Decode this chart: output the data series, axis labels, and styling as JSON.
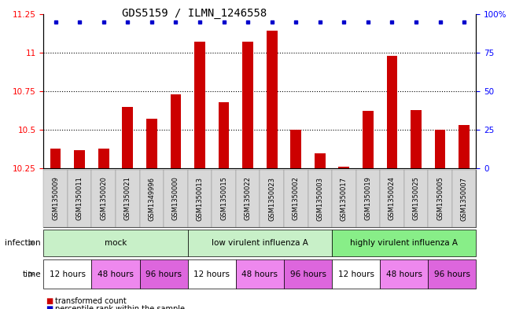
{
  "title": "GDS5159 / ILMN_1246558",
  "samples": [
    "GSM1350009",
    "GSM1350011",
    "GSM1350020",
    "GSM1350021",
    "GSM1349996",
    "GSM1350000",
    "GSM1350013",
    "GSM1350015",
    "GSM1350022",
    "GSM1350023",
    "GSM1350002",
    "GSM1350003",
    "GSM1350017",
    "GSM1350019",
    "GSM1350024",
    "GSM1350025",
    "GSM1350005",
    "GSM1350007"
  ],
  "bar_values": [
    10.38,
    10.37,
    10.38,
    10.65,
    10.57,
    10.73,
    11.07,
    10.68,
    11.07,
    11.14,
    10.5,
    10.35,
    10.26,
    10.62,
    10.98,
    10.63,
    10.5,
    10.53
  ],
  "ylim": [
    10.25,
    11.25
  ],
  "yticks": [
    10.25,
    10.5,
    10.75,
    11.0,
    11.25
  ],
  "ytick_labels": [
    "10.25",
    "10.5",
    "10.75",
    "11",
    "11.25"
  ],
  "right_yticks": [
    0,
    25,
    50,
    75,
    100
  ],
  "right_ytick_labels": [
    "0",
    "25",
    "50",
    "75",
    "100%"
  ],
  "bar_color": "#cc0000",
  "dot_color": "#0000cc",
  "bar_bottom": 10.25,
  "inf_groups": [
    {
      "label": "mock",
      "start": 0,
      "end": 6,
      "color": "#c8f0c8"
    },
    {
      "label": "low virulent influenza A",
      "start": 6,
      "end": 12,
      "color": "#c8f0c8"
    },
    {
      "label": "highly virulent influenza A",
      "start": 12,
      "end": 18,
      "color": "#88ee88"
    }
  ],
  "time_groups": [
    {
      "label": "12 hours",
      "start": 0,
      "end": 2,
      "color": "#ffffff"
    },
    {
      "label": "48 hours",
      "start": 2,
      "end": 4,
      "color": "#ee88ee"
    },
    {
      "label": "96 hours",
      "start": 4,
      "end": 6,
      "color": "#dd66dd"
    },
    {
      "label": "12 hours",
      "start": 6,
      "end": 8,
      "color": "#ffffff"
    },
    {
      "label": "48 hours",
      "start": 8,
      "end": 10,
      "color": "#ee88ee"
    },
    {
      "label": "96 hours",
      "start": 10,
      "end": 12,
      "color": "#dd66dd"
    },
    {
      "label": "12 hours",
      "start": 12,
      "end": 14,
      "color": "#ffffff"
    },
    {
      "label": "48 hours",
      "start": 14,
      "end": 16,
      "color": "#ee88ee"
    },
    {
      "label": "96 hours",
      "start": 16,
      "end": 18,
      "color": "#dd66dd"
    }
  ],
  "title_fontsize": 10,
  "tick_fontsize": 7.5,
  "sample_fontsize": 6,
  "row_fontsize": 7.5
}
